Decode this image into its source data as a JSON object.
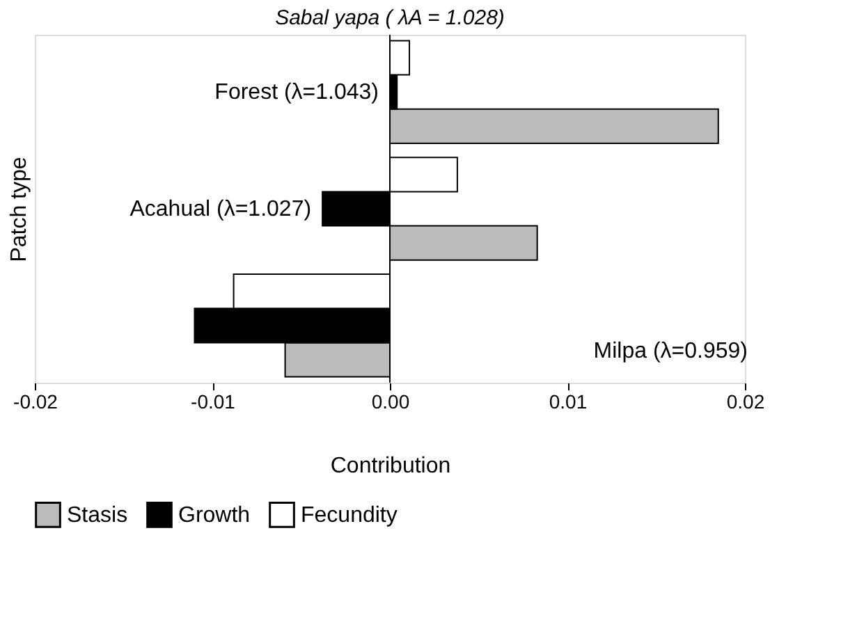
{
  "chart_data": {
    "type": "bar",
    "orientation": "horizontal",
    "title": "Sabal yapa ( λA = 1.028)",
    "xlabel": "Contribution",
    "ylabel": "Patch type",
    "categories": [
      "Forest (λ=1.043)",
      "Acahual (λ=1.027)",
      "Milpa (λ=0.959)"
    ],
    "series": [
      {
        "name": "Stasis",
        "color": "#bbbbbb",
        "values": [
          0.0185,
          0.0083,
          -0.0059
        ]
      },
      {
        "name": "Growth",
        "color": "#000000",
        "values": [
          0.0004,
          -0.0038,
          -0.011
        ]
      },
      {
        "name": "Fecundity",
        "color": "#ffffff",
        "values": [
          0.0011,
          0.0038,
          -0.0088
        ]
      }
    ],
    "xlim": [
      -0.02,
      0.02
    ],
    "xticks": [
      -0.02,
      -0.01,
      {
        "value": 0,
        "label": "0.00"
      },
      0.01,
      0.02
    ],
    "ref_lines": [
      {
        "axis": "x",
        "value": 0,
        "color": "#000000"
      }
    ],
    "tick_labels": "x",
    "grid": false,
    "legend": "bottom"
  }
}
